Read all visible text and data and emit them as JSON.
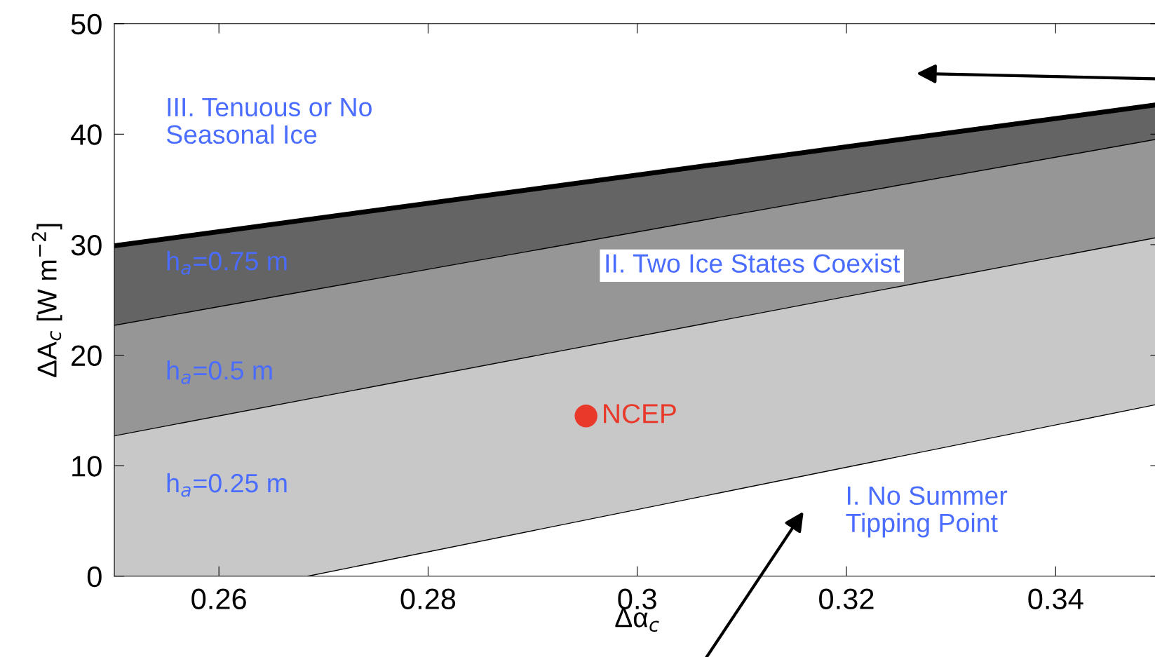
{
  "chart_data": {
    "type": "area",
    "xlabel": "Δα$_{c}$",
    "ylabel": "ΔA$_{c}$ [W m$^{−2}$]",
    "xlim": [
      0.25,
      0.35
    ],
    "ylim": [
      0,
      50
    ],
    "xticks": [
      0.26,
      0.28,
      0.3,
      0.32,
      0.34
    ],
    "yticks": [
      0,
      10,
      20,
      30,
      40,
      50
    ],
    "grid": false,
    "series": [
      {
        "type": "area",
        "color": "#646464",
        "x": [
          0.25,
          0.35
        ],
        "values": [
          29.9,
          42.7
        ]
      },
      {
        "type": "area",
        "color": "#969696",
        "x": [
          0.25,
          0.35
        ],
        "values": [
          22.7,
          39.6
        ]
      },
      {
        "type": "area",
        "color": "#c8c8c8",
        "x": [
          0.25,
          0.35
        ],
        "values": [
          12.7,
          30.7
        ]
      },
      {
        "type": "area",
        "color": "#ffffff",
        "x": [
          0.2685,
          0.35
        ],
        "values": [
          0,
          15.6
        ]
      },
      {
        "type": "scatter",
        "name": "NCEP",
        "color": "#e8392a",
        "x": [
          0.2951
        ],
        "values": [
          14.5
        ]
      }
    ],
    "annotations": [
      "III. Tenuous or No\nSeasonal Ice",
      "h$_{a}$=0.75 m",
      "h$_{a}$=0.5 m",
      "h$_{a}$=0.25 m",
      "II. Two Ice States Coexist",
      "I. No Summer\nTipping Point"
    ]
  }
}
